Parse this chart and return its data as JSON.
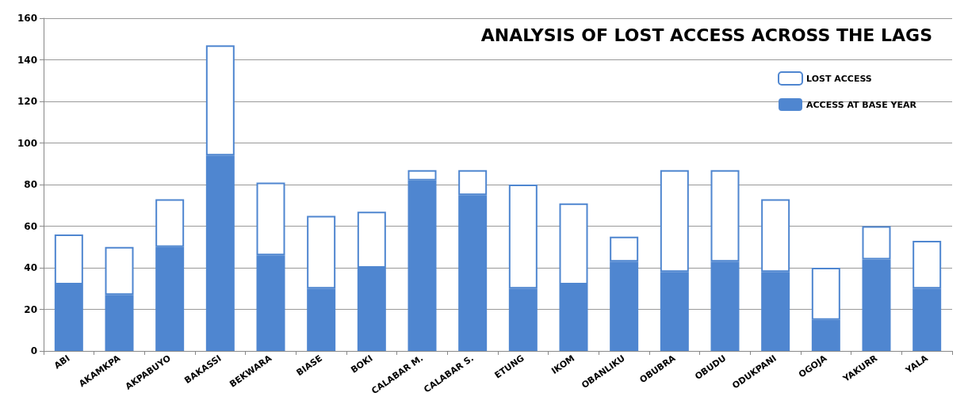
{
  "chart_data": {
    "type": "bar",
    "title": "ANALYSIS OF LOST ACCESS ACROSS THE LAGS",
    "categories": [
      "ABI",
      "AKAMKPA",
      "AKPABUYO",
      "BAKASSI",
      "BEKWARA",
      "BIASE",
      "BOKI",
      "CALABAR M.",
      "CALABAR S.",
      "ETUNG",
      "IKOM",
      "OBANLIKU",
      "OBUBRA",
      "OBUDU",
      "ODUKPANI",
      "OGOJA",
      "YAKURR",
      "YALA"
    ],
    "series": [
      {
        "name": "ACCESS AT BASE YEAR",
        "color": "#4f86d0",
        "values": [
          32,
          27,
          50,
          94,
          46,
          30,
          40,
          82,
          75,
          30,
          32,
          43,
          38,
          43,
          38,
          15,
          44,
          30
        ]
      },
      {
        "name": "LOST ACCESS",
        "color": "#ffffff",
        "values": [
          24,
          23,
          23,
          53,
          35,
          35,
          27,
          5,
          12,
          50,
          39,
          12,
          49,
          44,
          35,
          25,
          16,
          23
        ]
      }
    ],
    "stacked": true,
    "ylim": [
      0,
      160
    ],
    "yticks": [
      0,
      20,
      40,
      60,
      80,
      100,
      120,
      140,
      160
    ],
    "grid": "y",
    "legend": "top right"
  }
}
